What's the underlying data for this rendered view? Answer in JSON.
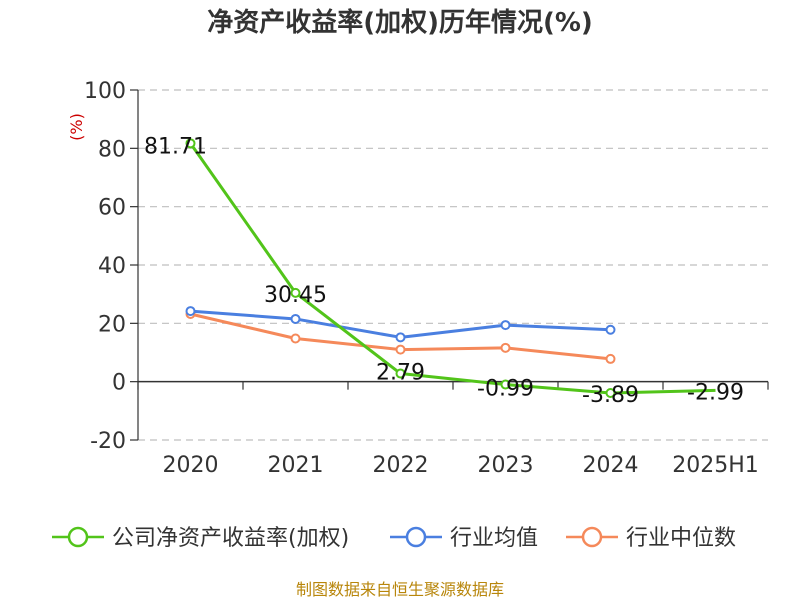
{
  "chart_data": {
    "type": "line",
    "title": "净资产收益率(加权)历年情况(%)",
    "ylabel": "(%)",
    "categories": [
      "2020",
      "2021",
      "2022",
      "2023",
      "2024",
      "2025H1"
    ],
    "yticks": [
      100,
      80,
      60,
      40,
      20,
      0,
      -20
    ],
    "ylim": [
      -20,
      100
    ],
    "grid": true,
    "legend_position": "bottom",
    "series": [
      {
        "name": "公司净资产收益率(加权)",
        "color": "#52c41a",
        "values": [
          81.71,
          30.45,
          2.79,
          -0.99,
          -3.89,
          -2.99
        ],
        "labels": [
          "81.71",
          "30.45",
          "2.79",
          "-0.99",
          "-3.89",
          "-2.99"
        ]
      },
      {
        "name": "行业均值",
        "color": "#4a7fe0",
        "values": [
          24.2,
          21.5,
          15.2,
          19.4,
          17.8,
          null
        ]
      },
      {
        "name": "行业中位数",
        "color": "#f5895a",
        "values": [
          23.2,
          14.8,
          11.0,
          11.6,
          7.8,
          null
        ]
      }
    ]
  },
  "footer": {
    "source": "制图数据来自恒生聚源数据库"
  }
}
